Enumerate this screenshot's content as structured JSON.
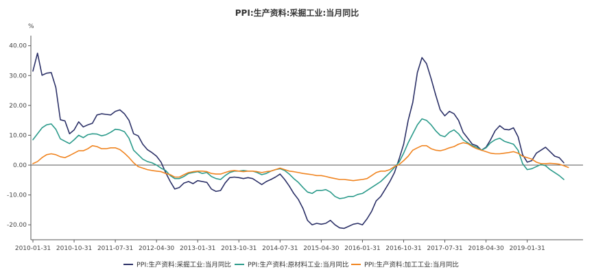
{
  "chart_data": {
    "type": "line",
    "title": "PPI:生产资料:采掘工业:当月同比",
    "ylabel": "%",
    "ylim": [
      -25,
      42
    ],
    "y_ticks": [
      "40.00",
      "30.00",
      "20.00",
      "10.00",
      "0.00",
      "-10.00",
      "-20.00"
    ],
    "x_ticks": [
      "2010-01-31",
      "2010-10-31",
      "2011-07-31",
      "2012-04-30",
      "2013-01-31",
      "2013-10-31",
      "2014-07-31",
      "2015-04-30",
      "2016-01-31",
      "2016-10-31",
      "2017-07-31",
      "2018-04-30",
      "2019-01-31"
    ],
    "grid": false,
    "legend_position": "bottom",
    "series": [
      {
        "name": "PPI:生产资料:采掘工业:当月同比",
        "color": "#2a2f66",
        "values": [
          31.5,
          37.5,
          30.1,
          30.8,
          31.0,
          26.0,
          15.2,
          14.8,
          10.5,
          11.8,
          14.5,
          12.8,
          13.5,
          14.0,
          16.8,
          17.2,
          17.0,
          16.8,
          18.0,
          18.5,
          17.2,
          15.0,
          10.5,
          9.8,
          7.0,
          5.2,
          4.2,
          3.0,
          1.0,
          -2.5,
          -5.5,
          -8.0,
          -7.5,
          -6.0,
          -5.5,
          -6.2,
          -5.2,
          -5.5,
          -5.8,
          -8.0,
          -8.8,
          -8.5,
          -6.0,
          -4.2,
          -4.0,
          -4.2,
          -4.5,
          -4.2,
          -4.5,
          -5.5,
          -6.5,
          -5.5,
          -4.8,
          -4.0,
          -3.0,
          -4.8,
          -7.0,
          -9.5,
          -11.5,
          -14.5,
          -18.5,
          -20.0,
          -19.5,
          -19.8,
          -19.5,
          -18.5,
          -20.0,
          -21.0,
          -21.2,
          -20.5,
          -19.8,
          -19.5,
          -20.0,
          -18.0,
          -15.5,
          -12.0,
          -10.5,
          -8.0,
          -5.5,
          -2.5,
          2.0,
          7.0,
          15.0,
          21.0,
          31.0,
          36.0,
          34.0,
          29.0,
          23.5,
          18.5,
          16.5,
          18.0,
          17.2,
          15.0,
          11.0,
          9.0,
          7.0,
          6.5,
          5.0,
          6.0,
          8.5,
          11.5,
          13.2,
          12.0,
          11.8,
          12.5,
          9.5,
          3.5,
          1.0,
          1.5,
          4.0,
          5.0,
          6.0,
          4.5,
          3.0,
          2.5,
          0.8
        ]
      },
      {
        "name": "PPI:生产资料:原材料工业:当月同比",
        "color": "#2a9a8a",
        "values": [
          8.5,
          10.5,
          12.5,
          13.5,
          13.8,
          12.0,
          8.8,
          8.0,
          7.2,
          8.5,
          10.0,
          9.2,
          10.2,
          10.5,
          10.4,
          9.8,
          10.2,
          11.0,
          12.0,
          11.8,
          11.2,
          9.0,
          5.0,
          3.5,
          2.0,
          1.2,
          0.8,
          0.0,
          -1.0,
          -1.8,
          -3.5,
          -4.5,
          -4.5,
          -3.8,
          -2.8,
          -2.5,
          -2.2,
          -2.8,
          -2.5,
          -3.8,
          -4.5,
          -4.8,
          -3.5,
          -2.5,
          -2.0,
          -2.0,
          -1.8,
          -2.0,
          -2.0,
          -2.5,
          -3.2,
          -2.8,
          -2.0,
          -1.5,
          -1.2,
          -1.8,
          -3.0,
          -4.5,
          -5.8,
          -7.5,
          -9.0,
          -9.5,
          -8.5,
          -8.5,
          -8.2,
          -9.0,
          -10.5,
          -11.2,
          -11.0,
          -10.5,
          -10.5,
          -9.8,
          -9.5,
          -8.5,
          -7.5,
          -6.5,
          -5.5,
          -4.0,
          -2.5,
          -0.8,
          1.0,
          4.0,
          7.5,
          10.5,
          13.5,
          15.5,
          15.0,
          13.5,
          11.5,
          10.0,
          9.5,
          11.0,
          11.8,
          10.5,
          8.5,
          7.5,
          6.5,
          6.0,
          5.0,
          5.8,
          7.5,
          8.5,
          9.0,
          8.0,
          7.5,
          7.0,
          5.0,
          0.5,
          -1.5,
          -1.2,
          -0.5,
          0.2,
          -0.2,
          -1.5,
          -2.5,
          -3.5,
          -4.8
        ]
      },
      {
        "name": "PPI:生产资料:加工工业:当月同比",
        "color": "#f0831e",
        "values": [
          0.5,
          1.2,
          2.5,
          3.5,
          3.8,
          3.5,
          2.8,
          2.5,
          3.2,
          4.0,
          4.8,
          4.8,
          5.5,
          6.5,
          6.2,
          5.5,
          5.5,
          5.8,
          5.8,
          5.2,
          4.0,
          2.5,
          0.8,
          -0.5,
          -1.0,
          -1.5,
          -1.8,
          -2.0,
          -2.2,
          -2.8,
          -3.2,
          -4.0,
          -4.0,
          -3.2,
          -2.5,
          -2.2,
          -2.0,
          -2.0,
          -2.2,
          -2.8,
          -3.0,
          -3.0,
          -2.5,
          -2.0,
          -1.8,
          -2.0,
          -2.2,
          -2.0,
          -2.0,
          -2.2,
          -2.5,
          -2.2,
          -2.0,
          -1.5,
          -1.0,
          -1.5,
          -2.0,
          -2.2,
          -2.5,
          -2.8,
          -3.0,
          -3.2,
          -3.5,
          -3.5,
          -3.8,
          -4.2,
          -4.5,
          -4.8,
          -4.8,
          -5.0,
          -5.2,
          -5.0,
          -4.8,
          -4.5,
          -3.5,
          -2.5,
          -2.0,
          -2.0,
          -1.5,
          -0.5,
          0.2,
          1.5,
          3.0,
          5.0,
          5.8,
          6.5,
          6.5,
          5.5,
          5.0,
          4.8,
          5.2,
          5.8,
          6.2,
          7.0,
          7.5,
          7.2,
          6.2,
          5.5,
          5.0,
          4.5,
          4.0,
          3.8,
          3.8,
          4.0,
          4.2,
          4.5,
          4.0,
          3.0,
          2.5,
          2.0,
          1.0,
          0.5,
          0.5,
          0.6,
          0.5,
          0.3,
          -0.2,
          -0.8
        ]
      }
    ]
  }
}
